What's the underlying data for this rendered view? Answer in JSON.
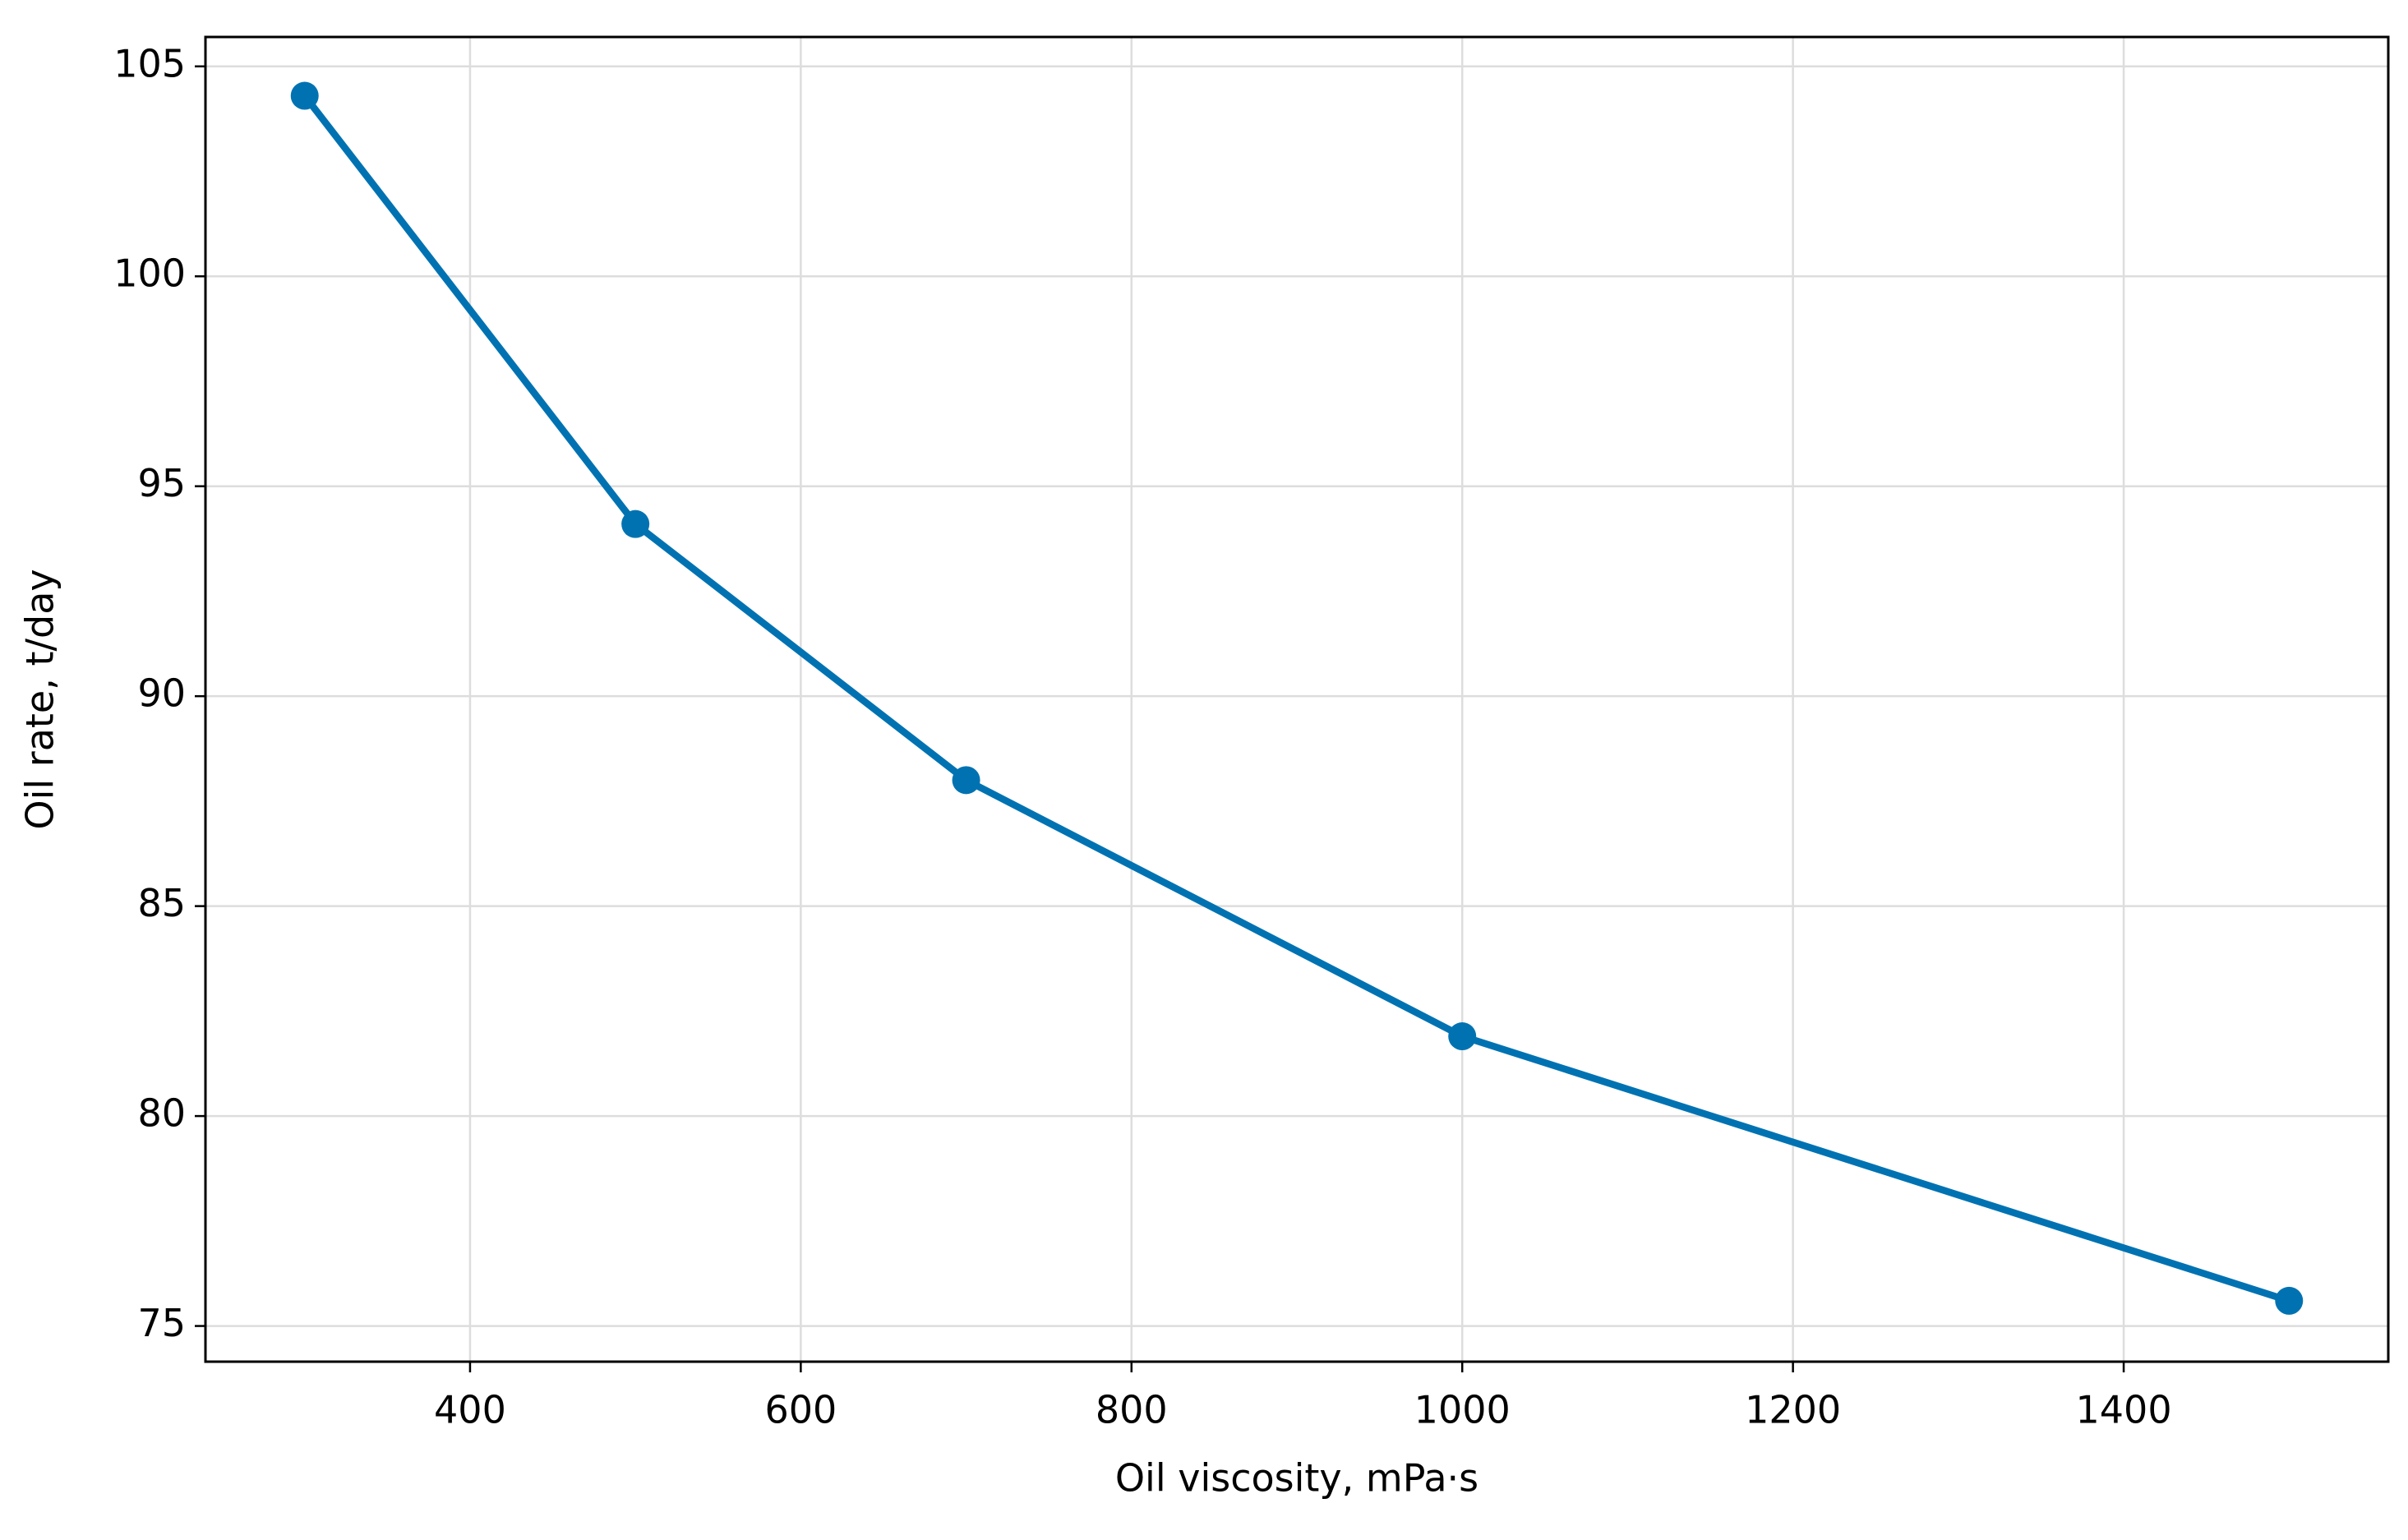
{
  "chart_data": {
    "type": "line",
    "x_label": "Oil viscosity, mPa·s",
    "y_label": "Oil rate, t/day",
    "x": [
      300,
      500,
      700,
      1000,
      1500
    ],
    "series": [
      {
        "color": "#0072b2",
        "values": [
          104.3,
          94.1,
          88.0,
          81.9,
          75.6
        ]
      }
    ],
    "xlim": [
      240,
      1560
    ],
    "ylim": [
      74.15,
      105.7
    ],
    "xticks": [
      400,
      600,
      800,
      1000,
      1200,
      1400
    ],
    "yticks": [
      75,
      80,
      85,
      90,
      95,
      100,
      105
    ],
    "grid": true,
    "markers": true
  }
}
